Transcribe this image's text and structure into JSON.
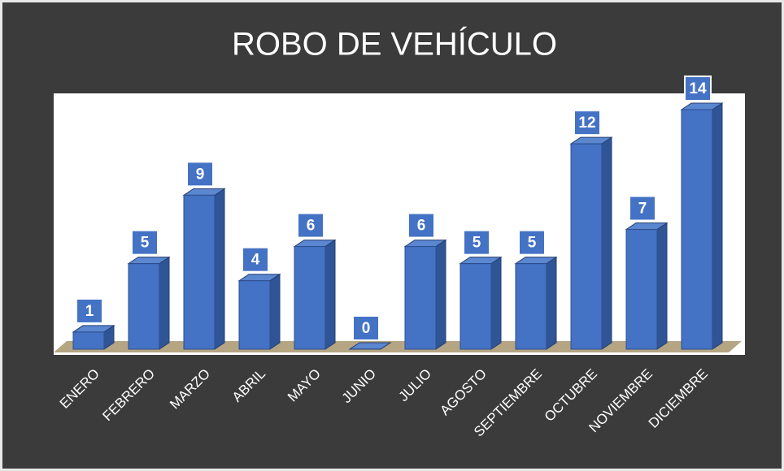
{
  "chart_data": {
    "type": "bar3d",
    "title": "ROBO DE VEHÍCULO",
    "categories": [
      "ENERO",
      "FEBRERO",
      "MARZO",
      "ABRIL",
      "MAYO",
      "JUNIO",
      "JULIO",
      "AGOSTO",
      "SEPTIEMBRE",
      "OCTUBRE",
      "NOVIEMBRE",
      "DICIEMBRE"
    ],
    "values": [
      1,
      5,
      9,
      4,
      6,
      0,
      6,
      5,
      5,
      12,
      7,
      14
    ],
    "color": "#4472c4"
  }
}
